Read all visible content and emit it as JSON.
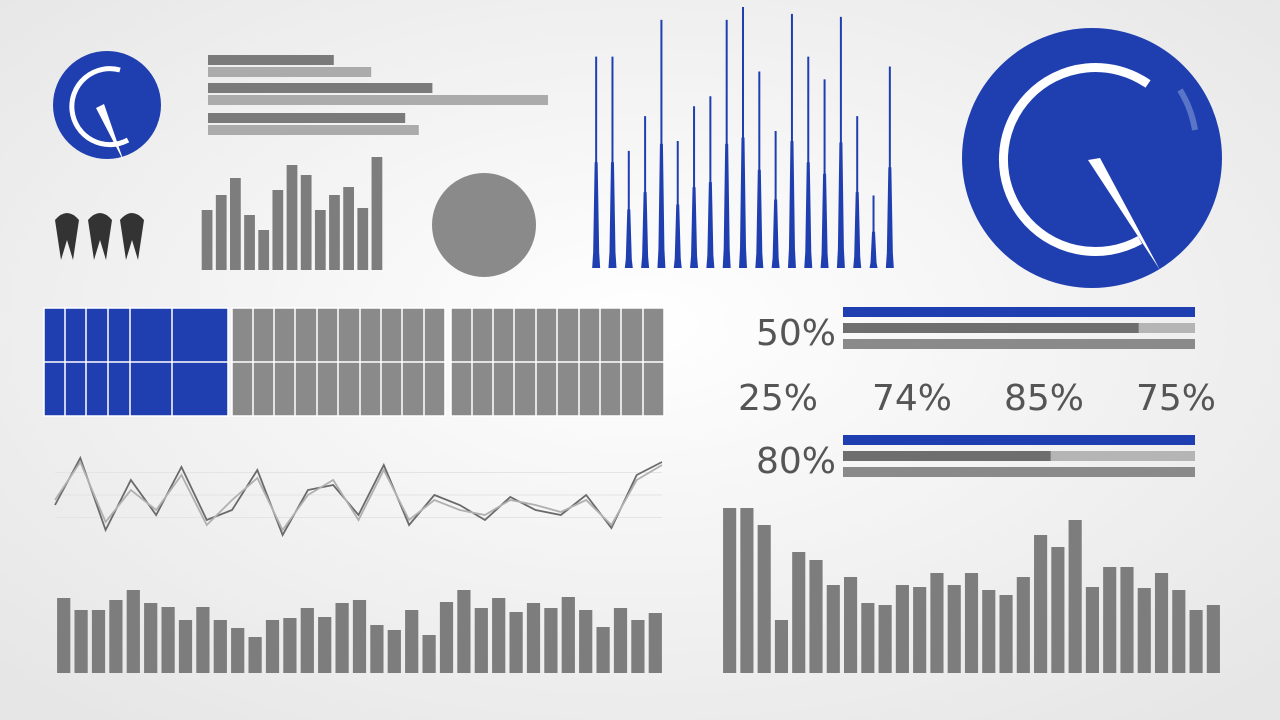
{
  "chart_data": [
    {
      "type": "hbar",
      "xlim": [
        0,
        100
      ],
      "series": [
        {
          "color": "#7a7a7a",
          "values": [
            37,
            66,
            58
          ]
        },
        {
          "color": "#ababab",
          "values": [
            48,
            100,
            62
          ]
        }
      ]
    },
    {
      "type": "bar",
      "color": "#7d7d7d",
      "ylim": [
        0,
        120
      ],
      "values": [
        60,
        75,
        92,
        55,
        40,
        80,
        105,
        95,
        60,
        75,
        83,
        62,
        113
      ]
    },
    {
      "type": "spike",
      "color": "#1f3fb0",
      "ylim": [
        0,
        270
      ],
      "values": [
        213,
        213,
        118,
        153,
        250,
        128,
        163,
        173,
        250,
        263,
        198,
        138,
        256,
        213,
        190,
        253,
        153,
        73,
        203
      ]
    },
    {
      "type": "line",
      "ylim": [
        0,
        90
      ],
      "series": [
        {
          "color": "#6a6a6a",
          "values": [
            35,
            82,
            10,
            60,
            25,
            73,
            20,
            30,
            70,
            5,
            50,
            55,
            25,
            75,
            15,
            45,
            35,
            20,
            43,
            30,
            25,
            45,
            12,
            65,
            78
          ]
        },
        {
          "color": "#b0b0b0",
          "values": [
            40,
            78,
            18,
            50,
            30,
            65,
            15,
            40,
            62,
            10,
            45,
            60,
            20,
            70,
            20,
            40,
            30,
            25,
            40,
            35,
            28,
            40,
            15,
            60,
            75
          ]
        }
      ]
    },
    {
      "type": "progress",
      "label": "50%",
      "xlim": [
        0,
        100
      ],
      "colors": [
        "#1f3fb0",
        "#6e6e6e",
        "#8a8a8a"
      ],
      "values": [
        100,
        84,
        100
      ]
    },
    {
      "type": "progress",
      "label": "80%",
      "xlim": [
        0,
        100
      ],
      "colors": [
        "#1f3fb0",
        "#6e6e6e",
        "#8a8a8a"
      ],
      "values": [
        100,
        59,
        100
      ]
    },
    {
      "type": "bar",
      "color": "#7d7d7d",
      "ylim": [
        0,
        100
      ],
      "values": [
        75,
        63,
        63,
        73,
        83,
        70,
        66,
        53,
        66,
        53,
        45,
        36,
        53,
        55,
        65,
        56,
        70,
        73,
        48,
        43,
        63,
        38,
        71,
        83,
        65,
        75,
        61,
        70,
        65,
        76,
        63,
        46,
        65,
        53,
        60
      ]
    },
    {
      "type": "bar",
      "color": "#7d7d7d",
      "ylim": [
        0,
        170
      ],
      "values": [
        165,
        165,
        148,
        53,
        121,
        113,
        88,
        96,
        70,
        68,
        88,
        86,
        100,
        88,
        100,
        83,
        78,
        96,
        138,
        126,
        153,
        86,
        106,
        106,
        85,
        100,
        83,
        63,
        68
      ]
    }
  ],
  "percent_row": [
    "25%",
    "74%",
    "85%",
    "75%"
  ]
}
